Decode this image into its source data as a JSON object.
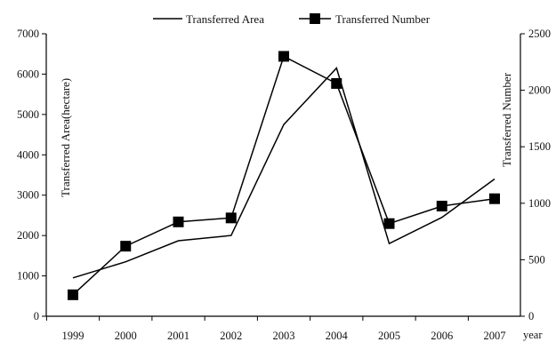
{
  "chart_data": {
    "type": "line",
    "x_label_unit": "year",
    "categories": [
      "1999",
      "2000",
      "2001",
      "2002",
      "2003",
      "2004",
      "2005",
      "2006",
      "2007"
    ],
    "y_left": {
      "label": "Transferred Area(hectare)",
      "lim": [
        0,
        7000
      ],
      "ticks": [
        "0",
        "1000",
        "2000",
        "3000",
        "4000",
        "5000",
        "6000",
        "7000"
      ]
    },
    "y_right": {
      "label": "Transferred Number",
      "lim": [
        0,
        2500
      ],
      "ticks": [
        "0",
        "500",
        "1000",
        "1500",
        "2000",
        "2500"
      ]
    },
    "legend_position": "top",
    "series": [
      {
        "name": "Transferred Area",
        "axis": "left",
        "marker": "none",
        "color": "#000000",
        "values": [
          950,
          1350,
          1870,
          2000,
          4750,
          6150,
          1800,
          2450,
          3400
        ]
      },
      {
        "name": "Transferred Number",
        "axis": "right",
        "marker": "square",
        "color": "#000000",
        "values": [
          190,
          620,
          835,
          870,
          2300,
          2060,
          820,
          975,
          1040
        ]
      }
    ]
  }
}
